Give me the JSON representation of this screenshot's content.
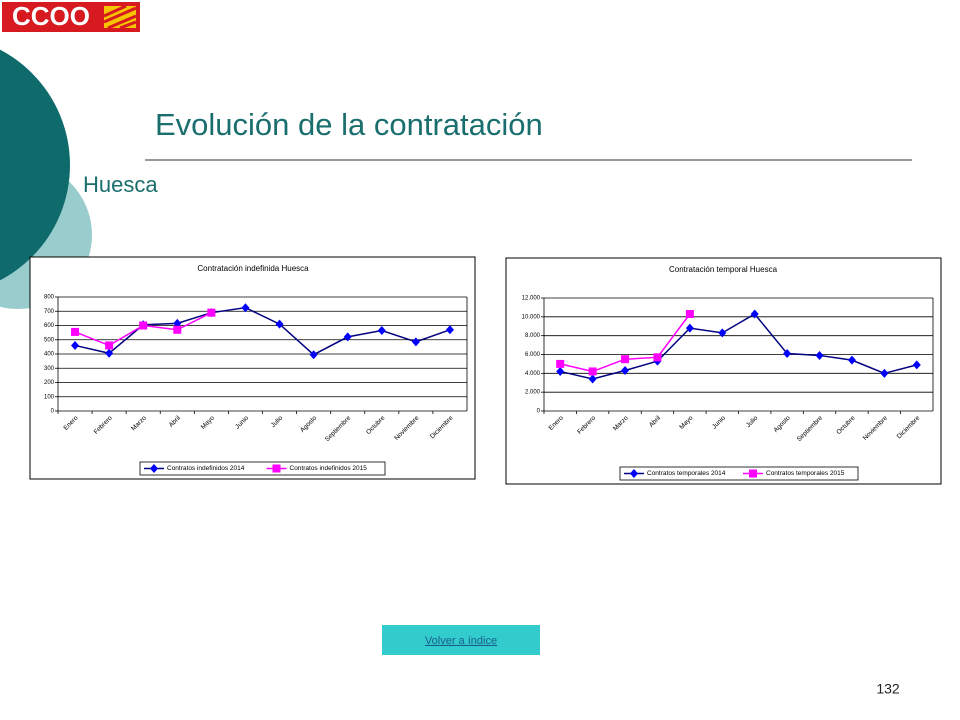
{
  "logo": "CCOO",
  "title": "Evolución de la contratación",
  "subtitle": "Huesca",
  "link": "Volver a índice",
  "page_number": "132",
  "chart_data": [
    {
      "type": "line",
      "title": "Contratación indefinida Huesca",
      "categories": [
        "Enero",
        "Febrero",
        "Marzo",
        "Abril",
        "Mayo",
        "Junio",
        "Julio",
        "Agosto",
        "Septiembre",
        "Octubre",
        "Noviembre",
        "Diciembre"
      ],
      "series": [
        {
          "name": "Contratos indefinidos 2014",
          "color": "#000080",
          "marker_color": "#0000ff",
          "marker": "diamond",
          "values": [
            460,
            405,
            605,
            615,
            690,
            725,
            610,
            395,
            520,
            565,
            485,
            570
          ]
        },
        {
          "name": "Contratos indefinidos 2015",
          "color": "#ff00ff",
          "marker_color": "#ff00ff",
          "marker": "square",
          "values": [
            555,
            460,
            600,
            570,
            690,
            null,
            null,
            null,
            null,
            null,
            null,
            null
          ]
        }
      ],
      "ylim": [
        0,
        800
      ],
      "yticks": [
        0,
        100,
        200,
        300,
        400,
        500,
        600,
        700,
        800
      ],
      "grid": true,
      "legend": "bottom"
    },
    {
      "type": "line",
      "title": "Contratación temporal Huesca",
      "categories": [
        "Enero",
        "Febrero",
        "Marzo",
        "Abril",
        "Mayo",
        "Junio",
        "Julio",
        "Agosto",
        "Septiembre",
        "Octubre",
        "Noviembre",
        "Diciembre"
      ],
      "series": [
        {
          "name": "Contratos temporales 2014",
          "color": "#000080",
          "marker_color": "#0000ff",
          "marker": "diamond",
          "values": [
            4200,
            3400,
            4300,
            5300,
            8800,
            8300,
            10300,
            6100,
            5900,
            5400,
            4000,
            4900
          ]
        },
        {
          "name": "Contratos temporales 2015",
          "color": "#ff00ff",
          "marker_color": "#ff00ff",
          "marker": "square",
          "values": [
            5000,
            4200,
            5500,
            5700,
            10300,
            null,
            null,
            null,
            null,
            null,
            null,
            null
          ]
        }
      ],
      "ylim": [
        0,
        12000
      ],
      "yticks": [
        0,
        {
          "value": 2000,
          "label": "2.000"
        },
        {
          "value": 4000,
          "label": "4.000"
        },
        {
          "value": 6000,
          "label": "6.000"
        },
        {
          "value": 8000,
          "label": "8.000"
        },
        {
          "value": 10000,
          "label": "10.000"
        },
        {
          "value": 12000,
          "label": "12.000"
        }
      ],
      "grid": true,
      "legend": "bottom"
    }
  ]
}
